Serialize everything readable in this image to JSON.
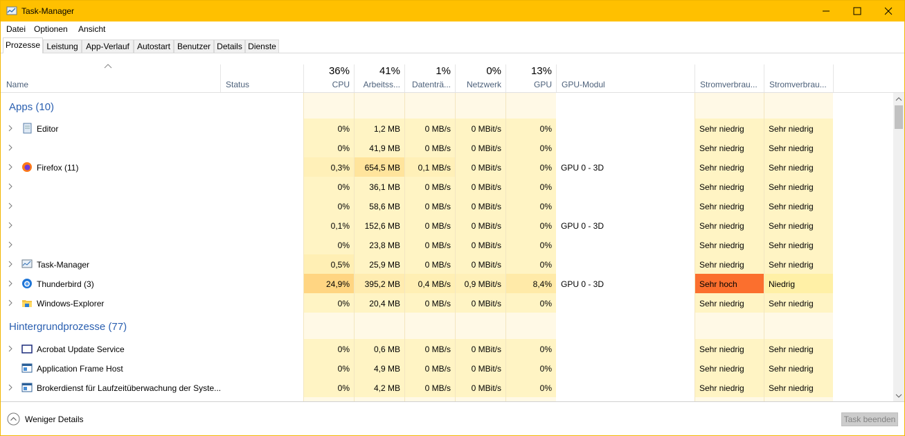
{
  "window": {
    "title": "Task-Manager"
  },
  "menu": [
    "Datei",
    "Optionen",
    "Ansicht"
  ],
  "tabs": [
    "Prozesse",
    "Leistung",
    "App-Verlauf",
    "Autostart",
    "Benutzer",
    "Details",
    "Dienste"
  ],
  "columns": [
    {
      "name": "Name"
    },
    {
      "name": "Status"
    },
    {
      "usage": "36%",
      "name": "CPU"
    },
    {
      "usage": "41%",
      "name": "Arbeitss..."
    },
    {
      "usage": "1%",
      "name": "Datenträ..."
    },
    {
      "usage": "0%",
      "name": "Netzwerk"
    },
    {
      "usage": "13%",
      "name": "GPU"
    },
    {
      "name": "GPU-Modul"
    },
    {
      "name": "Stromverbrau..."
    },
    {
      "name": "Stromverbrau..."
    }
  ],
  "groups": [
    {
      "title": "Apps (10)",
      "rows": [
        {
          "expandable": true,
          "cells": [
            "Editor",
            null,
            "0%",
            "1,2 MB",
            "0 MB/s",
            "0 MBit/s",
            "0%",
            null,
            "Sehr niedrig",
            "Sehr niedrig"
          ]
        },
        {
          "expandable": true,
          "cells": [
            null,
            null,
            "0%",
            "41,9 MB",
            "0 MB/s",
            "0 MBit/s",
            "0%",
            null,
            "Sehr niedrig",
            "Sehr niedrig"
          ]
        },
        {
          "expandable": true,
          "cells": [
            "Firefox (11)",
            null,
            "0,3%",
            "654,5 MB",
            "0,1 MB/s",
            "0 MBit/s",
            "0%",
            "GPU 0 - 3D",
            "Sehr niedrig",
            "Sehr niedrig"
          ]
        },
        {
          "expandable": true,
          "cells": [
            null,
            null,
            "0%",
            "36,1 MB",
            "0 MB/s",
            "0 MBit/s",
            "0%",
            null,
            "Sehr niedrig",
            "Sehr niedrig"
          ]
        },
        {
          "expandable": true,
          "cells": [
            null,
            null,
            "0%",
            "58,6 MB",
            "0 MB/s",
            "0 MBit/s",
            "0%",
            null,
            "Sehr niedrig",
            "Sehr niedrig"
          ]
        },
        {
          "expandable": true,
          "cells": [
            null,
            null,
            "0,1%",
            "152,6 MB",
            "0 MB/s",
            "0 MBit/s",
            "0%",
            "GPU 0 - 3D",
            "Sehr niedrig",
            "Sehr niedrig"
          ]
        },
        {
          "expandable": true,
          "cells": [
            null,
            null,
            "0%",
            "23,8 MB",
            "0 MB/s",
            "0 MBit/s",
            "0%",
            null,
            "Sehr niedrig",
            "Sehr niedrig"
          ]
        },
        {
          "expandable": true,
          "cells": [
            "Task-Manager",
            null,
            "0,5%",
            "25,9 MB",
            "0 MB/s",
            "0 MBit/s",
            "0%",
            null,
            "Sehr niedrig",
            "Sehr niedrig"
          ]
        },
        {
          "expandable": true,
          "cells": [
            "Thunderbird (3)",
            null,
            "24,9%",
            "395,2 MB",
            "0,4 MB/s",
            "0,9 MBit/s",
            "8,4%",
            "GPU 0 - 3D",
            "Sehr hoch",
            "Niedrig"
          ]
        },
        {
          "expandable": true,
          "cells": [
            "Windows-Explorer",
            null,
            "0%",
            "20,4 MB",
            "0 MB/s",
            "0 MBit/s",
            "0%",
            null,
            "Sehr niedrig",
            "Sehr niedrig"
          ]
        }
      ]
    },
    {
      "title": "Hintergrundprozesse (77)",
      "rows": [
        {
          "expandable": true,
          "cells": [
            "Acrobat Update Service",
            null,
            "0%",
            "0,6 MB",
            "0 MB/s",
            "0 MBit/s",
            "0%",
            null,
            "Sehr niedrig",
            "Sehr niedrig"
          ]
        },
        {
          "expandable": false,
          "cells": [
            "Application Frame Host",
            null,
            "0%",
            "4,9 MB",
            "0 MB/s",
            "0 MBit/s",
            "0%",
            null,
            "Sehr niedrig",
            "Sehr niedrig"
          ]
        },
        {
          "expandable": true,
          "cells": [
            "Brokerdienst für Laufzeitüberwachung der Syste...",
            null,
            "0%",
            "4,2 MB",
            "0 MB/s",
            "0 MBit/s",
            "0%",
            null,
            "Sehr niedrig",
            "Sehr niedrig"
          ]
        }
      ]
    }
  ],
  "footer": {
    "toggle": "Weniger Details",
    "button": "Task beenden"
  }
}
